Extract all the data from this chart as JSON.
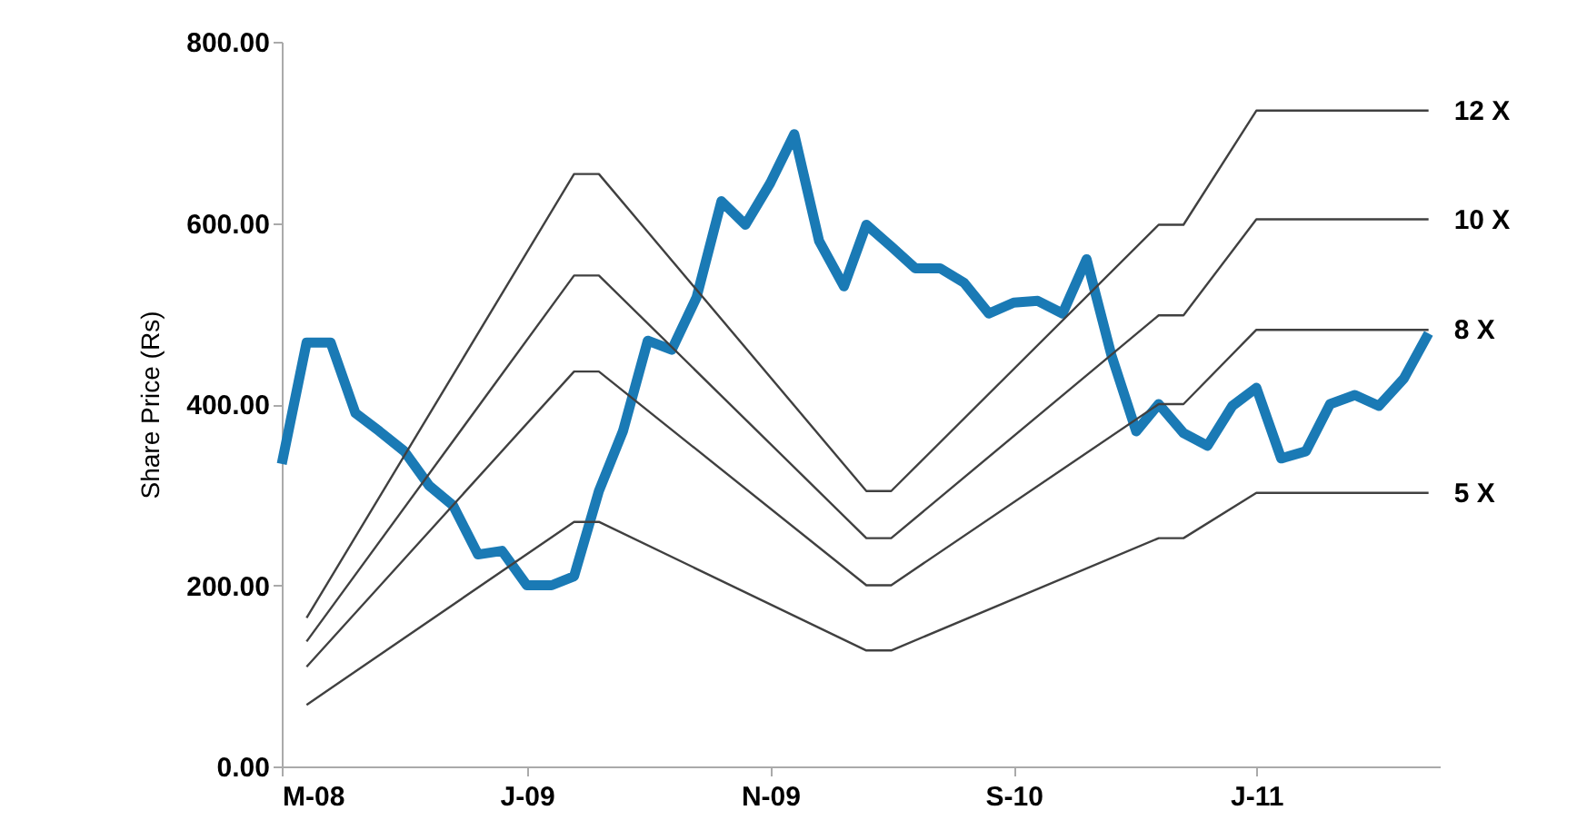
{
  "chart_data": {
    "type": "line",
    "ylabel": "Share Price (Rs)",
    "x": [
      "2008-03",
      "2008-04",
      "2008-05",
      "2008-06",
      "2008-07",
      "2008-08",
      "2008-09",
      "2008-10",
      "2008-11",
      "2008-12",
      "2009-01",
      "2009-02",
      "2009-03",
      "2009-04",
      "2009-05",
      "2009-06",
      "2009-07",
      "2009-08",
      "2009-09",
      "2009-10",
      "2009-11",
      "2009-12",
      "2010-01",
      "2010-02",
      "2010-03",
      "2010-04",
      "2010-05",
      "2010-06",
      "2010-07",
      "2010-08",
      "2010-09",
      "2010-10",
      "2010-11",
      "2010-12",
      "2011-01",
      "2011-02",
      "2011-03",
      "2011-04",
      "2011-05",
      "2011-06",
      "2011-07",
      "2011-08",
      "2011-09",
      "2011-10",
      "2011-11",
      "2011-12",
      "2012-01",
      "2012-02"
    ],
    "series": [
      {
        "color": "#1a7ab5",
        "values": [
          334,
          468,
          468,
          390,
          370,
          348,
          310,
          288,
          234,
          238,
          200,
          200,
          210,
          304,
          370,
          470,
          460,
          518,
          624,
          598,
          644,
          698,
          580,
          530,
          598,
          574,
          550,
          550,
          534,
          500,
          512,
          514,
          500,
          560,
          454,
          370,
          400,
          368,
          354,
          398,
          418,
          340,
          348,
          400,
          410,
          398,
          428,
          478
        ]
      },
      {
        "name": "12 X",
        "color": "#404040",
        "x": [
          "2008-04",
          "2009-03",
          "2009-04",
          "2010-03",
          "2010-04",
          "2011-03",
          "2011-04",
          "2011-07",
          "2012-02"
        ],
        "values": [
          164,
          654,
          654,
          304,
          304,
          598,
          598,
          724,
          724
        ]
      },
      {
        "name": "10 X",
        "color": "#404040",
        "x": [
          "2008-04",
          "2009-03",
          "2009-04",
          "2010-03",
          "2010-04",
          "2011-03",
          "2011-04",
          "2011-07",
          "2012-02"
        ],
        "values": [
          138,
          542,
          542,
          252,
          252,
          498,
          498,
          604,
          604
        ]
      },
      {
        "name": "8 X",
        "color": "#404040",
        "x": [
          "2008-04",
          "2009-03",
          "2009-04",
          "2010-03",
          "2010-04",
          "2011-03",
          "2011-04",
          "2011-07",
          "2012-02"
        ],
        "values": [
          110,
          436,
          436,
          200,
          200,
          400,
          400,
          482,
          482
        ]
      },
      {
        "name": "5 X",
        "color": "#404040",
        "x": [
          "2008-04",
          "2009-03",
          "2009-04",
          "2010-03",
          "2010-04",
          "2011-03",
          "2011-04",
          "2011-07",
          "2012-02"
        ],
        "values": [
          68,
          270,
          270,
          128,
          128,
          252,
          252,
          302,
          302
        ]
      }
    ],
    "xlim": [
      "2008-03",
      "2012-02-15"
    ],
    "xticks": [
      {
        "value": "2008-03",
        "label": "M-08"
      },
      {
        "value": "2009-01",
        "label": "J-09"
      },
      {
        "value": "2009-11",
        "label": "N-09"
      },
      {
        "value": "2010-09",
        "label": "S-10"
      },
      {
        "value": "2011-07",
        "label": "J-11"
      }
    ],
    "ylim": [
      0,
      800
    ],
    "yticks": [
      {
        "value": 0,
        "label": "0.00"
      },
      {
        "value": 200,
        "label": "200.00"
      },
      {
        "value": 400,
        "label": "400.00"
      },
      {
        "value": 600,
        "label": "600.00"
      },
      {
        "value": 800,
        "label": "800.00"
      }
    ],
    "grid": false,
    "marker": "none",
    "line_style": "solid"
  }
}
